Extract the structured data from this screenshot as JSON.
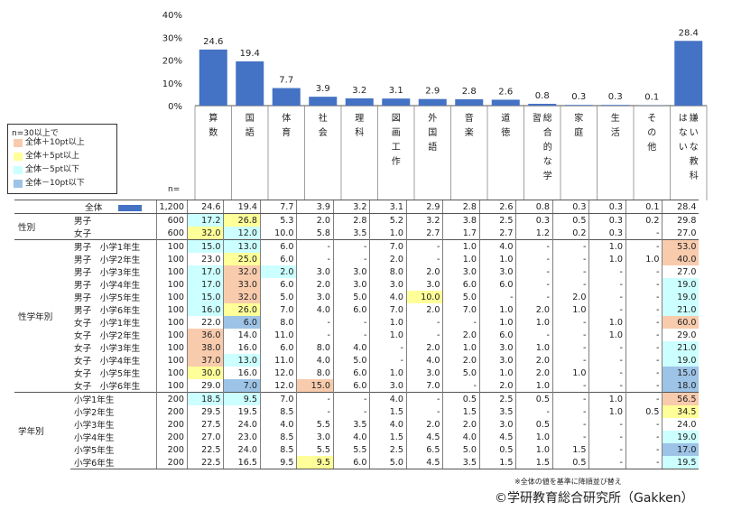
{
  "chart_data": {
    "type": "bar",
    "ylim": [
      0,
      40
    ],
    "yticks": [
      "40%",
      "30%",
      "20%",
      "10%",
      "0%"
    ],
    "categories": [
      "算数",
      "国語",
      "体育",
      "社会",
      "理科",
      "図画工作",
      "外国語",
      "音楽",
      "道徳",
      "総合的な学習",
      "家庭",
      "生活",
      "その他",
      "嫌いな教科はない"
    ],
    "values": [
      24.6,
      19.4,
      7.7,
      3.9,
      3.2,
      3.1,
      2.9,
      2.8,
      2.6,
      0.8,
      0.3,
      0.3,
      0.1,
      28.4
    ],
    "value_labels": [
      "24.6",
      "19.4",
      "7.7",
      "3.9",
      "3.2",
      "3.1",
      "2.9",
      "2.8",
      "2.6",
      "0.8",
      "0.3",
      "0.3",
      "0.1",
      "28.4"
    ],
    "bar_color": "#4472c4"
  },
  "legend": {
    "title": "n=30以上で",
    "items": [
      {
        "label": "全体＋10pt以上",
        "color": "#f8cbad"
      },
      {
        "label": "全体＋5pt以上",
        "color": "#ffff99"
      },
      {
        "label": "全体－5pt以下",
        "color": "#ccffff"
      },
      {
        "label": "全体－10pt以下",
        "color": "#9dc3e6"
      }
    ]
  },
  "n_label": "n=",
  "colors": {
    "p10": "#f8cbad",
    "p5": "#ffff99",
    "m5": "#ccffff",
    "m10": "#9dc3e6"
  },
  "table": {
    "total": {
      "label": "全体",
      "n": "1,200",
      "values": [
        "24.6",
        "19.4",
        "7.7",
        "3.9",
        "3.2",
        "3.1",
        "2.9",
        "2.8",
        "2.6",
        "0.8",
        "0.3",
        "0.3",
        "0.1",
        "28.4"
      ]
    },
    "groups": [
      {
        "name": "性別",
        "rows": [
          {
            "label": "男子",
            "n": "600",
            "values": [
              "17.2",
              "26.8",
              "5.3",
              "2.0",
              "2.8",
              "5.2",
              "3.2",
              "3.8",
              "2.5",
              "0.3",
              "0.5",
              "0.3",
              "0.2",
              "29.8"
            ],
            "hl": [
              "m5",
              "p5",
              "",
              "",
              "",
              "",
              "",
              "",
              "",
              "",
              "",
              "",
              "",
              ""
            ]
          },
          {
            "label": "女子",
            "n": "600",
            "values": [
              "32.0",
              "12.0",
              "10.0",
              "5.8",
              "3.5",
              "1.0",
              "2.7",
              "1.7",
              "2.7",
              "1.2",
              "0.2",
              "0.3",
              "-",
              "27.0"
            ],
            "hl": [
              "p5",
              "m5",
              "",
              "",
              "",
              "",
              "",
              "",
              "",
              "",
              "",
              "",
              "",
              ""
            ]
          }
        ]
      },
      {
        "name": "性学年別",
        "rows": [
          {
            "label": "男子　小学1年生",
            "n": "100",
            "values": [
              "15.0",
              "13.0",
              "6.0",
              "-",
              "-",
              "7.0",
              "-",
              "1.0",
              "4.0",
              "-",
              "-",
              "1.0",
              "-",
              "53.0"
            ],
            "hl": [
              "m5",
              "m5",
              "",
              "",
              "",
              "",
              "",
              "",
              "",
              "",
              "",
              "",
              "",
              "p10"
            ]
          },
          {
            "label": "男子　小学2年生",
            "n": "100",
            "values": [
              "23.0",
              "25.0",
              "6.0",
              "-",
              "-",
              "2.0",
              "-",
              "1.0",
              "1.0",
              "-",
              "-",
              "1.0",
              "1.0",
              "40.0"
            ],
            "hl": [
              "",
              "p5",
              "",
              "",
              "",
              "",
              "",
              "",
              "",
              "",
              "",
              "",
              "",
              "p10"
            ]
          },
          {
            "label": "男子　小学3年生",
            "n": "100",
            "values": [
              "17.0",
              "32.0",
              "2.0",
              "3.0",
              "3.0",
              "8.0",
              "2.0",
              "3.0",
              "3.0",
              "-",
              "-",
              "-",
              "-",
              "27.0"
            ],
            "hl": [
              "m5",
              "p10",
              "m5",
              "",
              "",
              "",
              "",
              "",
              "",
              "",
              "",
              "",
              "",
              ""
            ]
          },
          {
            "label": "男子　小学4年生",
            "n": "100",
            "values": [
              "17.0",
              "33.0",
              "6.0",
              "2.0",
              "3.0",
              "3.0",
              "3.0",
              "6.0",
              "6.0",
              "-",
              "-",
              "-",
              "-",
              "19.0"
            ],
            "hl": [
              "m5",
              "p10",
              "",
              "",
              "",
              "",
              "",
              "",
              "",
              "",
              "",
              "",
              "",
              "m5"
            ]
          },
          {
            "label": "男子　小学5年生",
            "n": "100",
            "values": [
              "15.0",
              "32.0",
              "5.0",
              "3.0",
              "5.0",
              "4.0",
              "10.0",
              "5.0",
              "-",
              "-",
              "2.0",
              "-",
              "-",
              "19.0"
            ],
            "hl": [
              "m5",
              "p10",
              "",
              "",
              "",
              "",
              "p5",
              "",
              "",
              "",
              "",
              "",
              "",
              "m5"
            ]
          },
          {
            "label": "男子　小学6年生",
            "n": "100",
            "values": [
              "16.0",
              "26.0",
              "7.0",
              "4.0",
              "6.0",
              "7.0",
              "2.0",
              "7.0",
              "1.0",
              "2.0",
              "1.0",
              "-",
              "-",
              "21.0"
            ],
            "hl": [
              "m5",
              "p5",
              "",
              "",
              "",
              "",
              "",
              "",
              "",
              "",
              "",
              "",
              "",
              "m5"
            ]
          },
          {
            "label": "女子　小学1年生",
            "n": "100",
            "values": [
              "22.0",
              "6.0",
              "8.0",
              "-",
              "-",
              "1.0",
              "-",
              "-",
              "1.0",
              "1.0",
              "-",
              "1.0",
              "-",
              "60.0"
            ],
            "hl": [
              "",
              "m10",
              "",
              "",
              "",
              "",
              "",
              "",
              "",
              "",
              "",
              "",
              "",
              "p10"
            ]
          },
          {
            "label": "女子　小学2年生",
            "n": "100",
            "values": [
              "36.0",
              "14.0",
              "11.0",
              "-",
              "-",
              "1.0",
              "-",
              "2.0",
              "6.0",
              "-",
              "-",
              "1.0",
              "-",
              "29.0"
            ],
            "hl": [
              "p10",
              "",
              "",
              "",
              "",
              "",
              "",
              "",
              "",
              "",
              "",
              "",
              "",
              ""
            ]
          },
          {
            "label": "女子　小学3年生",
            "n": "100",
            "values": [
              "38.0",
              "16.0",
              "6.0",
              "8.0",
              "4.0",
              "-",
              "2.0",
              "1.0",
              "3.0",
              "1.0",
              "-",
              "-",
              "-",
              "21.0"
            ],
            "hl": [
              "p10",
              "",
              "",
              "",
              "",
              "",
              "",
              "",
              "",
              "",
              "",
              "",
              "",
              "m5"
            ]
          },
          {
            "label": "女子　小学4年生",
            "n": "100",
            "values": [
              "37.0",
              "13.0",
              "11.0",
              "4.0",
              "5.0",
              "-",
              "4.0",
              "2.0",
              "3.0",
              "2.0",
              "-",
              "-",
              "-",
              "19.0"
            ],
            "hl": [
              "p10",
              "m5",
              "",
              "",
              "",
              "",
              "",
              "",
              "",
              "",
              "",
              "",
              "",
              "m5"
            ]
          },
          {
            "label": "女子　小学5年生",
            "n": "100",
            "values": [
              "30.0",
              "16.0",
              "12.0",
              "8.0",
              "6.0",
              "1.0",
              "3.0",
              "5.0",
              "1.0",
              "2.0",
              "1.0",
              "-",
              "-",
              "15.0"
            ],
            "hl": [
              "p5",
              "",
              "",
              "",
              "",
              "",
              "",
              "",
              "",
              "",
              "",
              "",
              "",
              "m10"
            ]
          },
          {
            "label": "女子　小学6年生",
            "n": "100",
            "values": [
              "29.0",
              "7.0",
              "12.0",
              "15.0",
              "6.0",
              "3.0",
              "7.0",
              "-",
              "2.0",
              "1.0",
              "-",
              "-",
              "-",
              "18.0"
            ],
            "hl": [
              "",
              "m10",
              "",
              "p10",
              "",
              "",
              "",
              "",
              "",
              "",
              "",
              "",
              "",
              "m10"
            ]
          }
        ]
      },
      {
        "name": "学年別",
        "rows": [
          {
            "label": "小学1年生",
            "n": "200",
            "values": [
              "18.5",
              "9.5",
              "7.0",
              "-",
              "-",
              "4.0",
              "-",
              "0.5",
              "2.5",
              "0.5",
              "-",
              "1.0",
              "-",
              "56.5"
            ],
            "hl": [
              "m5",
              "m5",
              "",
              "",
              "",
              "",
              "",
              "",
              "",
              "",
              "",
              "",
              "",
              "p10"
            ]
          },
          {
            "label": "小学2年生",
            "n": "200",
            "values": [
              "29.5",
              "19.5",
              "8.5",
              "-",
              "-",
              "1.5",
              "-",
              "1.5",
              "3.5",
              "-",
              "-",
              "1.0",
              "0.5",
              "34.5"
            ],
            "hl": [
              "",
              "",
              "",
              "",
              "",
              "",
              "",
              "",
              "",
              "",
              "",
              "",
              "",
              "p5"
            ]
          },
          {
            "label": "小学3年生",
            "n": "200",
            "values": [
              "27.5",
              "24.0",
              "4.0",
              "5.5",
              "3.5",
              "4.0",
              "2.0",
              "2.0",
              "3.0",
              "0.5",
              "-",
              "-",
              "-",
              "24.0"
            ],
            "hl": [
              "",
              "",
              "",
              "",
              "",
              "",
              "",
              "",
              "",
              "",
              "",
              "",
              "",
              ""
            ]
          },
          {
            "label": "小学4年生",
            "n": "200",
            "values": [
              "27.0",
              "23.0",
              "8.5",
              "3.0",
              "4.0",
              "1.5",
              "4.5",
              "4.0",
              "4.5",
              "1.0",
              "-",
              "-",
              "-",
              "19.0"
            ],
            "hl": [
              "",
              "",
              "",
              "",
              "",
              "",
              "",
              "",
              "",
              "",
              "",
              "",
              "",
              "m5"
            ]
          },
          {
            "label": "小学5年生",
            "n": "200",
            "values": [
              "22.5",
              "24.0",
              "8.5",
              "5.5",
              "5.5",
              "2.5",
              "6.5",
              "5.0",
              "0.5",
              "1.0",
              "1.5",
              "-",
              "-",
              "17.0"
            ],
            "hl": [
              "",
              "",
              "",
              "",
              "",
              "",
              "",
              "",
              "",
              "",
              "",
              "",
              "",
              "m10"
            ]
          },
          {
            "label": "小学6年生",
            "n": "200",
            "values": [
              "22.5",
              "16.5",
              "9.5",
              "9.5",
              "6.0",
              "5.0",
              "4.5",
              "3.5",
              "1.5",
              "1.5",
              "0.5",
              "-",
              "-",
              "19.5"
            ],
            "hl": [
              "",
              "",
              "",
              "p5",
              "",
              "",
              "",
              "",
              "",
              "",
              "",
              "",
              "",
              "m5"
            ]
          }
        ]
      }
    ]
  },
  "note": "※全体の値を基準に降順並び替え",
  "copyright": "©学研教育総合研究所（Gakken）"
}
